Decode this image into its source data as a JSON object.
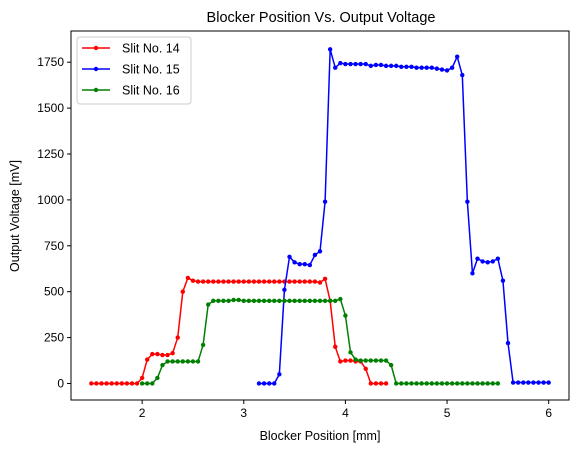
{
  "chart_data": {
    "type": "line",
    "title": "Blocker Position Vs. Output Voltage",
    "xlabel": "Blocker Position [mm]",
    "ylabel": "Output Voltage [mV]",
    "xlim": [
      1.3,
      6.2
    ],
    "ylim": [
      -90,
      1920
    ],
    "xticks": [
      2,
      3,
      4,
      5,
      6
    ],
    "yticks": [
      0,
      250,
      500,
      750,
      1000,
      1250,
      1500,
      1750
    ],
    "grid": false,
    "legend_position": "top-left",
    "series": [
      {
        "name": "Slit No. 14",
        "color": "#ff0000",
        "x": [
          1.5,
          1.55,
          1.6,
          1.65,
          1.7,
          1.75,
          1.8,
          1.85,
          1.9,
          1.95,
          2.0,
          2.05,
          2.1,
          2.15,
          2.2,
          2.25,
          2.3,
          2.35,
          2.4,
          2.45,
          2.5,
          2.55,
          2.6,
          2.65,
          2.7,
          2.75,
          2.8,
          2.85,
          2.9,
          2.95,
          3.0,
          3.05,
          3.1,
          3.15,
          3.2,
          3.25,
          3.3,
          3.35,
          3.4,
          3.45,
          3.5,
          3.55,
          3.6,
          3.65,
          3.7,
          3.75,
          3.8,
          3.85,
          3.9,
          3.95,
          4.0,
          4.05,
          4.1,
          4.15,
          4.2,
          4.25,
          4.3,
          4.35,
          4.4
        ],
        "y": [
          0,
          0,
          0,
          0,
          0,
          0,
          0,
          0,
          0,
          0,
          30,
          130,
          160,
          160,
          155,
          155,
          165,
          250,
          500,
          575,
          560,
          555,
          555,
          555,
          555,
          555,
          555,
          555,
          555,
          555,
          555,
          555,
          555,
          555,
          555,
          555,
          555,
          555,
          555,
          555,
          555,
          555,
          555,
          555,
          555,
          550,
          570,
          450,
          200,
          120,
          125,
          125,
          120,
          120,
          80,
          0,
          0,
          0,
          0
        ]
      },
      {
        "name": "Slit No. 15",
        "color": "#0000ff",
        "x": [
          3.15,
          3.2,
          3.25,
          3.3,
          3.35,
          3.4,
          3.45,
          3.5,
          3.55,
          3.6,
          3.65,
          3.7,
          3.75,
          3.8,
          3.85,
          3.9,
          3.95,
          4.0,
          4.05,
          4.1,
          4.15,
          4.2,
          4.25,
          4.3,
          4.35,
          4.4,
          4.45,
          4.5,
          4.55,
          4.6,
          4.65,
          4.7,
          4.75,
          4.8,
          4.85,
          4.9,
          4.95,
          5.0,
          5.05,
          5.1,
          5.15,
          5.2,
          5.25,
          5.3,
          5.35,
          5.4,
          5.45,
          5.5,
          5.55,
          5.6,
          5.65,
          5.7,
          5.75,
          5.8,
          5.85,
          5.9,
          5.95,
          6.0
        ],
        "y": [
          0,
          0,
          0,
          0,
          50,
          510,
          690,
          660,
          650,
          650,
          645,
          700,
          720,
          990,
          1820,
          1720,
          1745,
          1740,
          1740,
          1740,
          1740,
          1740,
          1730,
          1735,
          1735,
          1730,
          1730,
          1730,
          1725,
          1725,
          1725,
          1720,
          1720,
          1720,
          1720,
          1715,
          1710,
          1705,
          1720,
          1780,
          1680,
          990,
          600,
          680,
          665,
          660,
          665,
          680,
          560,
          220,
          5,
          5,
          5,
          5,
          5,
          5,
          5,
          5
        ]
      },
      {
        "name": "Slit No. 16",
        "color": "#008000",
        "x": [
          2.0,
          2.05,
          2.1,
          2.15,
          2.2,
          2.25,
          2.3,
          2.35,
          2.4,
          2.45,
          2.5,
          2.55,
          2.6,
          2.65,
          2.7,
          2.75,
          2.8,
          2.85,
          2.9,
          2.95,
          3.0,
          3.05,
          3.1,
          3.15,
          3.2,
          3.25,
          3.3,
          3.35,
          3.4,
          3.45,
          3.5,
          3.55,
          3.6,
          3.65,
          3.7,
          3.75,
          3.8,
          3.85,
          3.9,
          3.95,
          4.0,
          4.05,
          4.1,
          4.15,
          4.2,
          4.25,
          4.3,
          4.35,
          4.4,
          4.45,
          4.5,
          4.55,
          4.6,
          4.65,
          4.7,
          4.75,
          4.8,
          4.85,
          4.9,
          4.95,
          5.0,
          5.05,
          5.1,
          5.15,
          5.2,
          5.25,
          5.3,
          5.35,
          5.4,
          5.45,
          5.5
        ],
        "y": [
          0,
          0,
          0,
          30,
          100,
          120,
          120,
          120,
          120,
          120,
          120,
          120,
          210,
          430,
          450,
          450,
          450,
          450,
          455,
          455,
          450,
          450,
          450,
          450,
          450,
          450,
          450,
          450,
          450,
          450,
          450,
          450,
          450,
          450,
          450,
          450,
          450,
          450,
          450,
          460,
          370,
          170,
          130,
          125,
          125,
          125,
          125,
          125,
          125,
          100,
          0,
          0,
          0,
          0,
          0,
          0,
          0,
          0,
          0,
          0,
          0,
          0,
          0,
          0,
          0,
          0,
          0,
          0,
          0,
          0,
          0
        ]
      }
    ]
  }
}
